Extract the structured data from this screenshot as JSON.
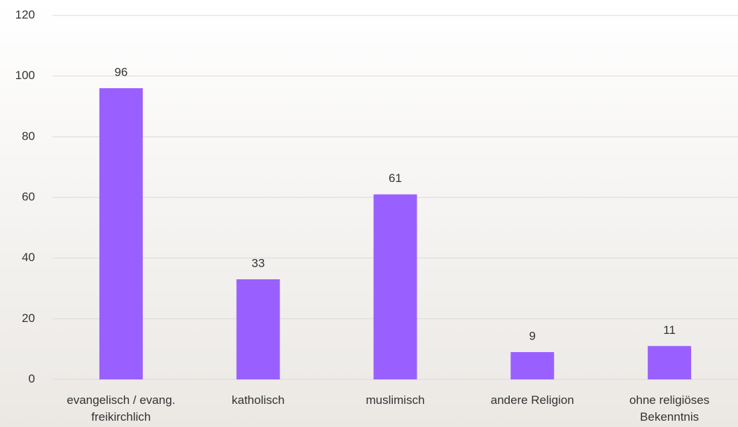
{
  "chart_data": {
    "type": "bar",
    "categories": [
      "evangelisch / evang. freikirchlich",
      "katholisch",
      "muslimisch",
      "andere Religion",
      "ohne religiöses Bekenntnis"
    ],
    "values": [
      96,
      33,
      61,
      9,
      11
    ],
    "color": "#9a60ff",
    "ylim": [
      0,
      120
    ],
    "yticks": [
      0,
      20,
      40,
      60,
      80,
      100,
      120
    ],
    "grid": true
  }
}
